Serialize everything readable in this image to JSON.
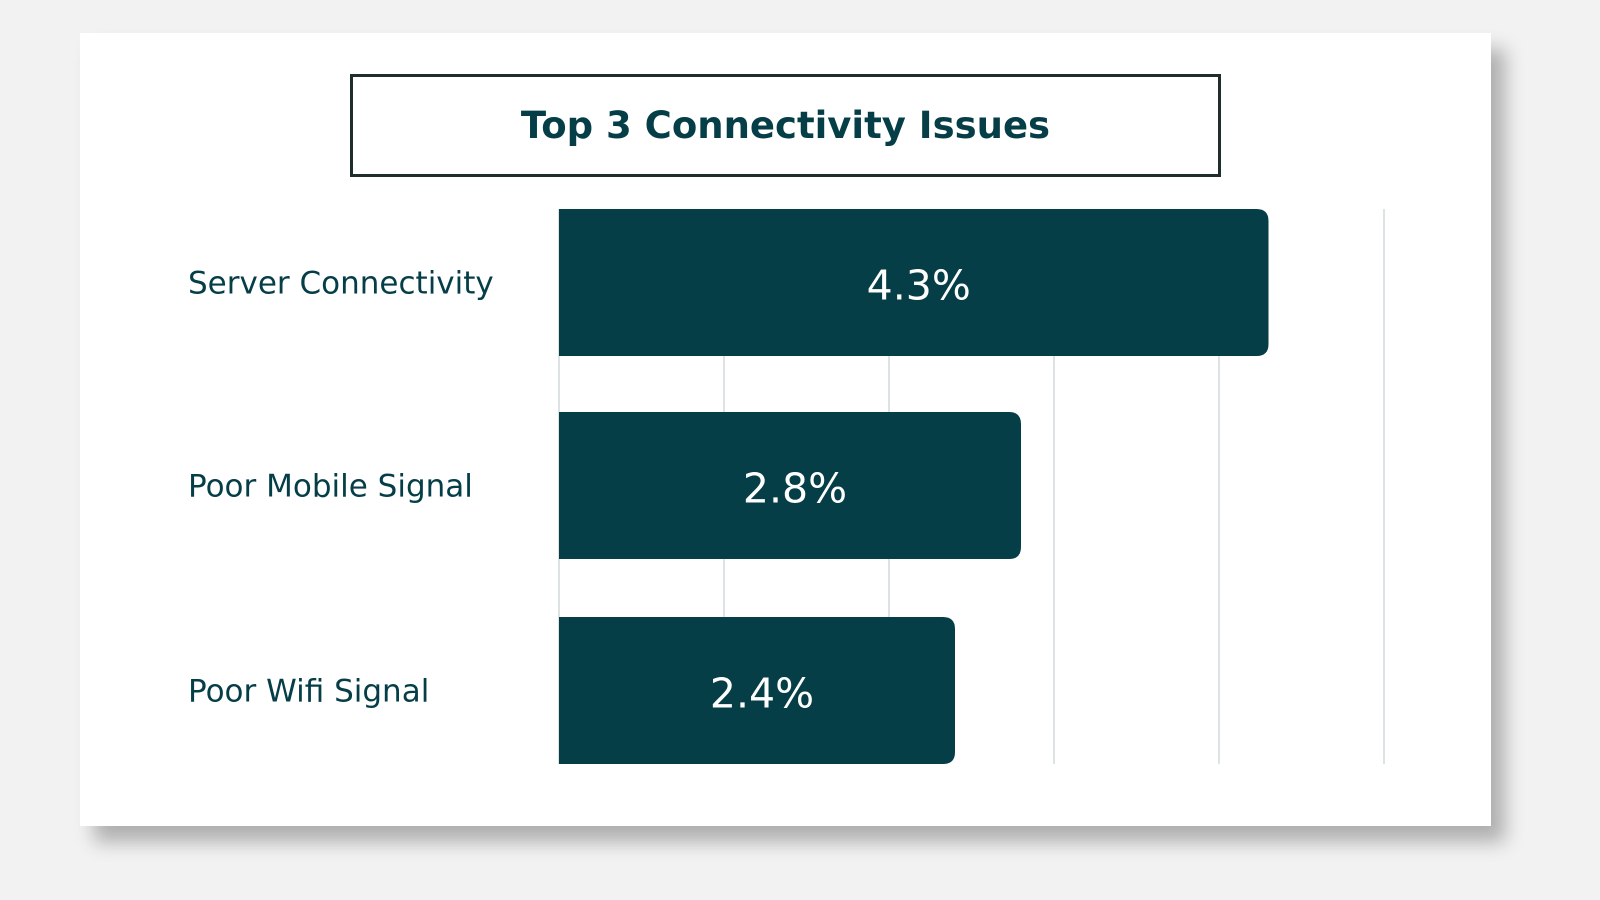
{
  "chart_data": {
    "type": "bar",
    "orientation": "horizontal",
    "title": "Top 3 Connectivity Issues",
    "categories": [
      "Server Connectivity",
      "Poor Mobile Signal",
      "Poor Wifi Signal"
    ],
    "values": [
      4.3,
      2.8,
      2.4
    ],
    "value_labels": [
      "4.3%",
      "2.8%",
      "2.4%"
    ],
    "xlim": [
      0,
      5
    ],
    "grid": true,
    "xlabel": "",
    "ylabel": "",
    "bar_color": "#053e47"
  }
}
